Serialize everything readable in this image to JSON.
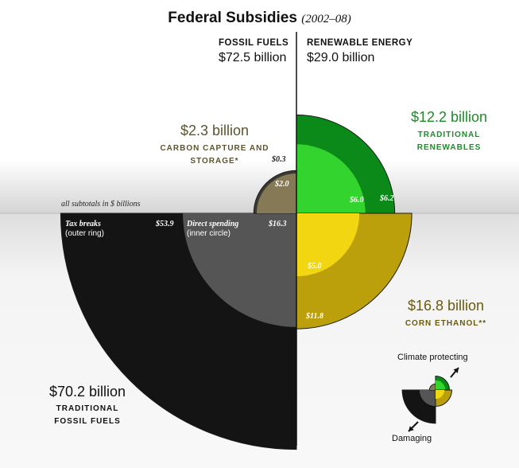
{
  "header": {
    "title": "Federal Subsidies",
    "subtitle": "(2002–08)"
  },
  "columns": {
    "left": {
      "name": "FOSSIL FUELS",
      "total": "$72.5 billion"
    },
    "right": {
      "name": "RENEWABLE ENERGY",
      "total": "$29.0 billion"
    }
  },
  "note": "all subtotals in $ billions",
  "chart_data": {
    "type": "pie",
    "units": "$ billions",
    "rings": [
      "Tax breaks (outer ring)",
      "Direct spending (inner circle)"
    ],
    "segments": [
      {
        "key": "fossil",
        "label": "TRADITIONAL FOSSIL FUELS",
        "total_label": "$70.2 billion",
        "total": 70.2,
        "outer": 53.9,
        "inner": 16.3,
        "outer_label": "$53.9",
        "inner_label": "$16.3",
        "quadrant": "bottom-left",
        "color_outer": "#141414",
        "color_inner": "#555555"
      },
      {
        "key": "ccs",
        "label": "CARBON CAPTURE AND STORAGE*",
        "total_label": "$2.3 billion",
        "total": 2.3,
        "outer": 0.3,
        "inner": 2.0,
        "outer_label": "$0.3",
        "inner_label": "$2.0",
        "quadrant": "top-left",
        "color_outer": "#3a3a32",
        "color_inner": "#867a56"
      },
      {
        "key": "renew",
        "label": "TRADITIONAL RENEWABLES",
        "total_label": "$12.2 billion",
        "total": 12.2,
        "outer": 6.2,
        "inner": 6.0,
        "outer_label": "$6.2",
        "inner_label": "$6.0",
        "quadrant": "top-right",
        "color_outer": "#0b8a1a",
        "color_inner": "#33d42e"
      },
      {
        "key": "corn",
        "label": "CORN ETHANOL**",
        "total_label": "$16.8 billion",
        "total": 16.8,
        "outer": 11.8,
        "inner": 5.0,
        "outer_label": "$11.8",
        "inner_label": "$5.0",
        "quadrant": "bottom-right",
        "color_outer": "#bba00c",
        "color_inner": "#f1d611"
      }
    ],
    "ring_key": {
      "outer": {
        "title": "Tax breaks",
        "sub": "(outer ring)"
      },
      "inner": {
        "title": "Direct spending",
        "sub": "(inner circle)"
      }
    },
    "legend": {
      "top": "Climate protecting",
      "bottom": "Damaging"
    },
    "label_colors": {
      "fossil": "#111111",
      "ccs": "#5a5530",
      "renew": "#1f8a2a",
      "corn": "#6b5a10"
    }
  }
}
